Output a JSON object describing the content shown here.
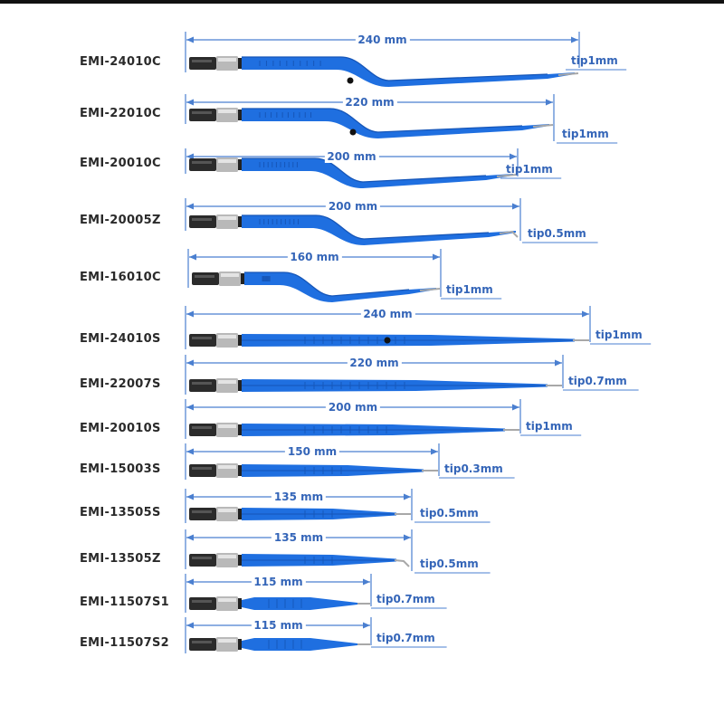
{
  "colors": {
    "instrument_blue": "#1f6fe0",
    "instrument_shade": "#1656b8",
    "dimension_line": "#4a7fd0",
    "label_text": "#3465b8",
    "model_text": "#2a2a2a",
    "connector_dark": "#2b2b2b",
    "connector_metal": "#b9b9b9"
  },
  "products": [
    {
      "model": "EMI-24010C",
      "length": "240 mm",
      "tip": "tip1mm",
      "shape": "bayonet",
      "tip_mm": 1,
      "length_mm": 240
    },
    {
      "model": "EMI-22010C",
      "length": "220 mm",
      "tip": "tip1mm",
      "shape": "bayonet",
      "tip_mm": 1,
      "length_mm": 220
    },
    {
      "model": "EMI-20010C",
      "length": "200 mm",
      "tip": "tip1mm",
      "shape": "bayonet",
      "tip_mm": 1,
      "length_mm": 200
    },
    {
      "model": "EMI-20005Z",
      "length": "200 mm",
      "tip": "tip0.5mm",
      "shape": "bayonet-angled",
      "tip_mm": 0.5,
      "length_mm": 200
    },
    {
      "model": "EMI-16010C",
      "length": "160 mm",
      "tip": "tip1mm",
      "shape": "bayonet",
      "tip_mm": 1,
      "length_mm": 160
    },
    {
      "model": "EMI-24010S",
      "length": "240 mm",
      "tip": "tip1mm",
      "shape": "straight",
      "tip_mm": 1,
      "length_mm": 240
    },
    {
      "model": "EMI-22007S",
      "length": "220 mm",
      "tip": "tip0.7mm",
      "shape": "straight",
      "tip_mm": 0.7,
      "length_mm": 220
    },
    {
      "model": "EMI-20010S",
      "length": "200 mm",
      "tip": "tip1mm",
      "shape": "straight",
      "tip_mm": 1,
      "length_mm": 200
    },
    {
      "model": "EMI-15003S",
      "length": "150 mm",
      "tip": "tip0.3mm",
      "shape": "straight",
      "tip_mm": 0.3,
      "length_mm": 150
    },
    {
      "model": "EMI-13505S",
      "length": "135 mm",
      "tip": "tip0.5mm",
      "shape": "straight",
      "tip_mm": 0.5,
      "length_mm": 135
    },
    {
      "model": "EMI-13505Z",
      "length": "135 mm",
      "tip": "tip0.5mm",
      "shape": "straight-angled",
      "tip_mm": 0.5,
      "length_mm": 135
    },
    {
      "model": "EMI-11507S1",
      "length": "115 mm",
      "tip": "tip0.7mm",
      "shape": "short",
      "tip_mm": 0.7,
      "length_mm": 115
    },
    {
      "model": "EMI-11507S2",
      "length": "115 mm",
      "tip": "tip0.7mm",
      "shape": "short",
      "tip_mm": 0.7,
      "length_mm": 115
    }
  ]
}
